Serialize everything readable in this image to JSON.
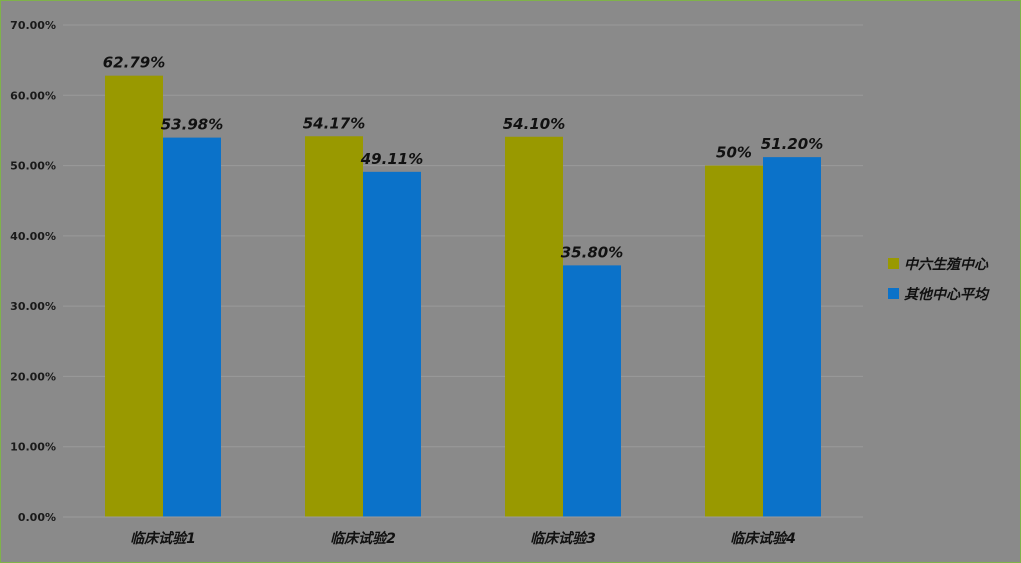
{
  "chart_data": {
    "type": "bar",
    "categories": [
      "临床试验1",
      "临床试验2",
      "临床试验3",
      "临床试验4"
    ],
    "series": [
      {
        "name": "中六生殖中心",
        "color": "#999900",
        "values": [
          62.79,
          54.17,
          54.1,
          50
        ],
        "labels": [
          "62.79%",
          "54.17%",
          "54.10%",
          "50%"
        ]
      },
      {
        "name": "其他中心平均",
        "color": "#0b72c9",
        "values": [
          53.98,
          49.11,
          35.8,
          51.2
        ],
        "labels": [
          "53.98%",
          "49.11%",
          "35.80%",
          "51.20%"
        ]
      }
    ],
    "y_ticks": [
      "0.00%",
      "10.00%",
      "20.00%",
      "30.00%",
      "40.00%",
      "50.00%",
      "60.00%",
      "70.00%"
    ],
    "ylim": [
      0,
      70
    ],
    "grid": true,
    "legend_position": "right",
    "title": "",
    "xlabel": "",
    "ylabel": ""
  }
}
